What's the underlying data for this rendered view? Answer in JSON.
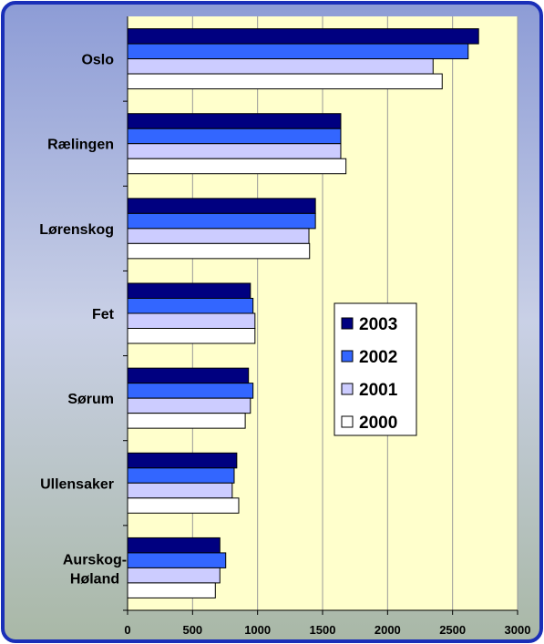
{
  "chart_data": {
    "type": "hbar",
    "categories": [
      "Oslo",
      "Rælingen",
      "Lørenskog",
      "Fet",
      "Sørum",
      "Ullensaker",
      "Aurskog-Høland"
    ],
    "series": [
      {
        "name": "2003",
        "color": "#000080",
        "values": [
          2700,
          1640,
          1445,
          945,
          930,
          840,
          710
        ]
      },
      {
        "name": "2002",
        "color": "#3366ff",
        "values": [
          2620,
          1640,
          1445,
          965,
          965,
          820,
          755
        ]
      },
      {
        "name": "2001",
        "color": "#ccccff",
        "values": [
          2350,
          1640,
          1395,
          980,
          945,
          805,
          710
        ]
      },
      {
        "name": "2000",
        "color": "#ffffff",
        "values": [
          2420,
          1680,
          1400,
          980,
          905,
          855,
          675
        ]
      }
    ],
    "xlim": [
      0,
      3000
    ],
    "xticks": [
      0,
      500,
      1000,
      1500,
      2000,
      2500,
      3000
    ],
    "grid": true
  }
}
